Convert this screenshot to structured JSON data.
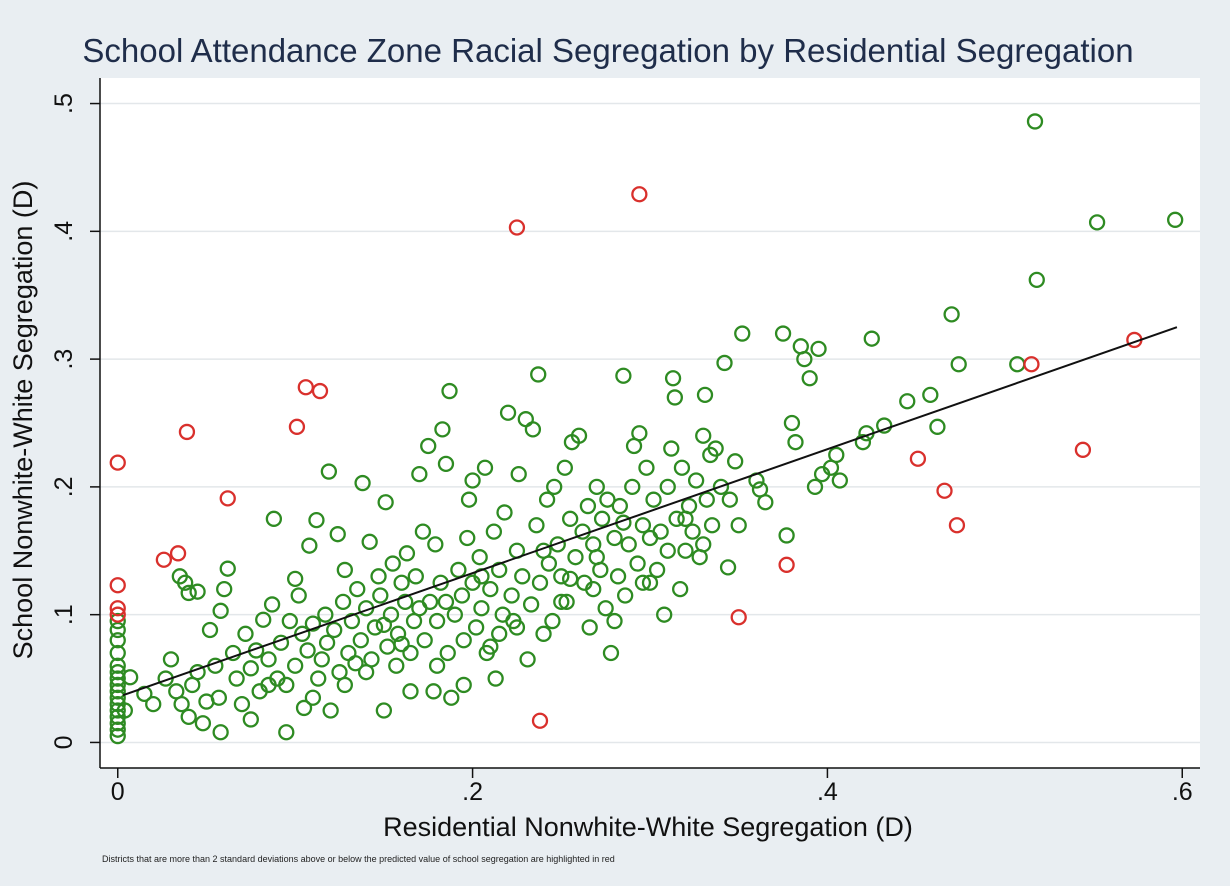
{
  "chart_data": {
    "type": "scatter",
    "title": "School Attendance Zone Racial Segregation by Residential Segregation",
    "xlabel": "Residential Nonwhite-White Segregation (D)",
    "ylabel": "School Nonwhite-White Segregation (D)",
    "note": "Districts that are more than 2 standard deviations above or below the predicted value of school segregation are highlighted in red",
    "xlim": [
      -0.01,
      0.61
    ],
    "ylim": [
      -0.02,
      0.52
    ],
    "xticks": [
      0,
      0.2,
      0.4,
      0.6
    ],
    "xtick_labels": [
      "0",
      ".2",
      ".4",
      ".6"
    ],
    "yticks": [
      0,
      0.1,
      0.2,
      0.3,
      0.4,
      0.5
    ],
    "ytick_labels": [
      "0",
      ".1",
      ".2",
      ".3",
      ".4",
      ".5"
    ],
    "grid": "horizontal",
    "colors": {
      "background": "#e9eef2",
      "plot_background": "#ffffff",
      "gridline": "#e3e7ea",
      "title": "#1f2d4a",
      "normal_point": "#2e8b22",
      "outlier_point": "#d9302c",
      "fit_line": "#111111"
    },
    "fit_line": {
      "x": [
        0.003,
        0.597
      ],
      "y": [
        0.037,
        0.325
      ]
    },
    "series": [
      {
        "color": "#d9302c",
        "points": [
          [
            0.0,
            0.219
          ],
          [
            0.0,
            0.123
          ],
          [
            0.0,
            0.105
          ],
          [
            0.0,
            0.1
          ],
          [
            0.026,
            0.143
          ],
          [
            0.034,
            0.148
          ],
          [
            0.039,
            0.243
          ],
          [
            0.062,
            0.191
          ],
          [
            0.101,
            0.247
          ],
          [
            0.106,
            0.278
          ],
          [
            0.114,
            0.275
          ],
          [
            0.225,
            0.403
          ],
          [
            0.294,
            0.429
          ],
          [
            0.238,
            0.017
          ],
          [
            0.35,
            0.098
          ],
          [
            0.377,
            0.139
          ],
          [
            0.451,
            0.222
          ],
          [
            0.466,
            0.197
          ],
          [
            0.473,
            0.17
          ],
          [
            0.515,
            0.296
          ],
          [
            0.544,
            0.229
          ],
          [
            0.573,
            0.315
          ]
        ]
      },
      {
        "color": "#2e8b22",
        "points": [
          [
            0.0,
            0.005
          ],
          [
            0.0,
            0.01
          ],
          [
            0.0,
            0.015
          ],
          [
            0.0,
            0.02
          ],
          [
            0.0,
            0.025
          ],
          [
            0.0,
            0.03
          ],
          [
            0.0,
            0.035
          ],
          [
            0.0,
            0.04
          ],
          [
            0.0,
            0.045
          ],
          [
            0.0,
            0.05
          ],
          [
            0.0,
            0.055
          ],
          [
            0.0,
            0.06
          ],
          [
            0.0,
            0.07
          ],
          [
            0.0,
            0.08
          ],
          [
            0.0,
            0.088
          ],
          [
            0.0,
            0.095
          ],
          [
            0.004,
            0.025
          ],
          [
            0.007,
            0.051
          ],
          [
            0.015,
            0.038
          ],
          [
            0.02,
            0.03
          ],
          [
            0.027,
            0.05
          ],
          [
            0.03,
            0.065
          ],
          [
            0.033,
            0.04
          ],
          [
            0.036,
            0.03
          ],
          [
            0.04,
            0.02
          ],
          [
            0.042,
            0.045
          ],
          [
            0.045,
            0.055
          ],
          [
            0.048,
            0.015
          ],
          [
            0.05,
            0.032
          ],
          [
            0.052,
            0.088
          ],
          [
            0.055,
            0.06
          ],
          [
            0.057,
            0.035
          ],
          [
            0.058,
            0.103
          ],
          [
            0.06,
            0.12
          ],
          [
            0.062,
            0.136
          ],
          [
            0.035,
            0.13
          ],
          [
            0.04,
            0.117
          ],
          [
            0.045,
            0.118
          ],
          [
            0.038,
            0.125
          ],
          [
            0.065,
            0.07
          ],
          [
            0.067,
            0.05
          ],
          [
            0.07,
            0.03
          ],
          [
            0.072,
            0.085
          ],
          [
            0.075,
            0.058
          ],
          [
            0.078,
            0.072
          ],
          [
            0.08,
            0.04
          ],
          [
            0.082,
            0.096
          ],
          [
            0.085,
            0.065
          ],
          [
            0.087,
            0.108
          ],
          [
            0.088,
            0.175
          ],
          [
            0.09,
            0.05
          ],
          [
            0.092,
            0.078
          ],
          [
            0.095,
            0.045
          ],
          [
            0.097,
            0.095
          ],
          [
            0.1,
            0.06
          ],
          [
            0.1,
            0.128
          ],
          [
            0.102,
            0.115
          ],
          [
            0.104,
            0.085
          ],
          [
            0.105,
            0.027
          ],
          [
            0.107,
            0.072
          ],
          [
            0.108,
            0.154
          ],
          [
            0.11,
            0.093
          ],
          [
            0.112,
            0.174
          ],
          [
            0.113,
            0.05
          ],
          [
            0.115,
            0.065
          ],
          [
            0.117,
            0.1
          ],
          [
            0.118,
            0.078
          ],
          [
            0.119,
            0.212
          ],
          [
            0.12,
            0.025
          ],
          [
            0.122,
            0.088
          ],
          [
            0.124,
            0.163
          ],
          [
            0.125,
            0.055
          ],
          [
            0.127,
            0.11
          ],
          [
            0.128,
            0.135
          ],
          [
            0.13,
            0.07
          ],
          [
            0.132,
            0.095
          ],
          [
            0.134,
            0.062
          ],
          [
            0.135,
            0.12
          ],
          [
            0.137,
            0.08
          ],
          [
            0.138,
            0.203
          ],
          [
            0.14,
            0.105
          ],
          [
            0.142,
            0.157
          ],
          [
            0.143,
            0.065
          ],
          [
            0.145,
            0.09
          ],
          [
            0.147,
            0.13
          ],
          [
            0.148,
            0.115
          ],
          [
            0.15,
            0.025
          ],
          [
            0.151,
            0.188
          ],
          [
            0.152,
            0.075
          ],
          [
            0.154,
            0.1
          ],
          [
            0.155,
            0.14
          ],
          [
            0.157,
            0.06
          ],
          [
            0.158,
            0.085
          ],
          [
            0.16,
            0.125
          ],
          [
            0.162,
            0.11
          ],
          [
            0.163,
            0.148
          ],
          [
            0.165,
            0.07
          ],
          [
            0.167,
            0.095
          ],
          [
            0.168,
            0.13
          ],
          [
            0.17,
            0.21
          ],
          [
            0.172,
            0.165
          ],
          [
            0.173,
            0.08
          ],
          [
            0.175,
            0.232
          ],
          [
            0.176,
            0.11
          ],
          [
            0.178,
            0.04
          ],
          [
            0.179,
            0.155
          ],
          [
            0.18,
            0.095
          ],
          [
            0.182,
            0.125
          ],
          [
            0.183,
            0.245
          ],
          [
            0.185,
            0.218
          ],
          [
            0.186,
            0.07
          ],
          [
            0.187,
            0.275
          ],
          [
            0.188,
            0.035
          ],
          [
            0.19,
            0.1
          ],
          [
            0.192,
            0.135
          ],
          [
            0.194,
            0.115
          ],
          [
            0.195,
            0.08
          ],
          [
            0.197,
            0.16
          ],
          [
            0.198,
            0.19
          ],
          [
            0.2,
            0.125
          ],
          [
            0.2,
            0.205
          ],
          [
            0.202,
            0.09
          ],
          [
            0.204,
            0.145
          ],
          [
            0.205,
            0.105
          ],
          [
            0.207,
            0.215
          ],
          [
            0.208,
            0.07
          ],
          [
            0.21,
            0.12
          ],
          [
            0.212,
            0.165
          ],
          [
            0.213,
            0.05
          ],
          [
            0.215,
            0.135
          ],
          [
            0.217,
            0.1
          ],
          [
            0.218,
            0.18
          ],
          [
            0.22,
            0.258
          ],
          [
            0.222,
            0.115
          ],
          [
            0.223,
            0.095
          ],
          [
            0.225,
            0.15
          ],
          [
            0.226,
            0.21
          ],
          [
            0.228,
            0.13
          ],
          [
            0.23,
            0.253
          ],
          [
            0.231,
            0.065
          ],
          [
            0.233,
            0.108
          ],
          [
            0.234,
            0.245
          ],
          [
            0.236,
            0.17
          ],
          [
            0.237,
            0.288
          ],
          [
            0.238,
            0.125
          ],
          [
            0.24,
            0.085
          ],
          [
            0.242,
            0.19
          ],
          [
            0.243,
            0.14
          ],
          [
            0.245,
            0.095
          ],
          [
            0.246,
            0.2
          ],
          [
            0.248,
            0.155
          ],
          [
            0.25,
            0.13
          ],
          [
            0.252,
            0.215
          ],
          [
            0.253,
            0.11
          ],
          [
            0.255,
            0.175
          ],
          [
            0.256,
            0.235
          ],
          [
            0.258,
            0.145
          ],
          [
            0.26,
            0.24
          ],
          [
            0.262,
            0.165
          ],
          [
            0.263,
            0.125
          ],
          [
            0.265,
            0.185
          ],
          [
            0.266,
            0.09
          ],
          [
            0.268,
            0.155
          ],
          [
            0.27,
            0.2
          ],
          [
            0.272,
            0.135
          ],
          [
            0.273,
            0.175
          ],
          [
            0.275,
            0.105
          ],
          [
            0.276,
            0.19
          ],
          [
            0.278,
            0.07
          ],
          [
            0.28,
            0.16
          ],
          [
            0.282,
            0.13
          ],
          [
            0.283,
            0.185
          ],
          [
            0.285,
            0.287
          ],
          [
            0.286,
            0.115
          ],
          [
            0.288,
            0.155
          ],
          [
            0.29,
            0.2
          ],
          [
            0.291,
            0.232
          ],
          [
            0.293,
            0.14
          ],
          [
            0.294,
            0.242
          ],
          [
            0.296,
            0.17
          ],
          [
            0.298,
            0.215
          ],
          [
            0.3,
            0.125
          ],
          [
            0.302,
            0.19
          ],
          [
            0.304,
            0.135
          ],
          [
            0.306,
            0.165
          ],
          [
            0.308,
            0.1
          ],
          [
            0.31,
            0.2
          ],
          [
            0.312,
            0.23
          ],
          [
            0.313,
            0.285
          ],
          [
            0.314,
            0.27
          ],
          [
            0.315,
            0.175
          ],
          [
            0.317,
            0.12
          ],
          [
            0.318,
            0.215
          ],
          [
            0.32,
            0.15
          ],
          [
            0.322,
            0.185
          ],
          [
            0.324,
            0.165
          ],
          [
            0.326,
            0.205
          ],
          [
            0.328,
            0.145
          ],
          [
            0.33,
            0.24
          ],
          [
            0.331,
            0.272
          ],
          [
            0.332,
            0.19
          ],
          [
            0.334,
            0.225
          ],
          [
            0.335,
            0.17
          ],
          [
            0.337,
            0.23
          ],
          [
            0.34,
            0.2
          ],
          [
            0.342,
            0.297
          ],
          [
            0.344,
            0.137
          ],
          [
            0.345,
            0.19
          ],
          [
            0.348,
            0.22
          ],
          [
            0.35,
            0.17
          ],
          [
            0.352,
            0.32
          ],
          [
            0.36,
            0.205
          ],
          [
            0.362,
            0.198
          ],
          [
            0.365,
            0.188
          ],
          [
            0.375,
            0.32
          ],
          [
            0.377,
            0.162
          ],
          [
            0.38,
            0.25
          ],
          [
            0.382,
            0.235
          ],
          [
            0.385,
            0.31
          ],
          [
            0.387,
            0.3
          ],
          [
            0.39,
            0.285
          ],
          [
            0.393,
            0.2
          ],
          [
            0.395,
            0.308
          ],
          [
            0.397,
            0.21
          ],
          [
            0.402,
            0.215
          ],
          [
            0.405,
            0.225
          ],
          [
            0.407,
            0.205
          ],
          [
            0.42,
            0.235
          ],
          [
            0.422,
            0.242
          ],
          [
            0.425,
            0.316
          ],
          [
            0.432,
            0.248
          ],
          [
            0.445,
            0.267
          ],
          [
            0.458,
            0.272
          ],
          [
            0.462,
            0.247
          ],
          [
            0.47,
            0.335
          ],
          [
            0.474,
            0.296
          ],
          [
            0.507,
            0.296
          ],
          [
            0.518,
            0.362
          ],
          [
            0.517,
            0.486
          ],
          [
            0.552,
            0.407
          ],
          [
            0.596,
            0.409
          ],
          [
            0.058,
            0.008
          ],
          [
            0.075,
            0.018
          ],
          [
            0.085,
            0.045
          ],
          [
            0.095,
            0.008
          ],
          [
            0.11,
            0.035
          ],
          [
            0.128,
            0.045
          ],
          [
            0.14,
            0.055
          ],
          [
            0.165,
            0.04
          ],
          [
            0.18,
            0.06
          ],
          [
            0.195,
            0.045
          ],
          [
            0.21,
            0.075
          ],
          [
            0.225,
            0.09
          ],
          [
            0.25,
            0.11
          ],
          [
            0.268,
            0.12
          ],
          [
            0.28,
            0.095
          ],
          [
            0.296,
            0.125
          ],
          [
            0.31,
            0.15
          ],
          [
            0.33,
            0.155
          ],
          [
            0.15,
            0.092
          ],
          [
            0.16,
            0.077
          ],
          [
            0.17,
            0.105
          ],
          [
            0.185,
            0.11
          ],
          [
            0.205,
            0.13
          ],
          [
            0.215,
            0.085
          ],
          [
            0.24,
            0.15
          ],
          [
            0.255,
            0.128
          ],
          [
            0.27,
            0.145
          ],
          [
            0.285,
            0.172
          ],
          [
            0.3,
            0.16
          ],
          [
            0.32,
            0.175
          ]
        ]
      }
    ]
  }
}
